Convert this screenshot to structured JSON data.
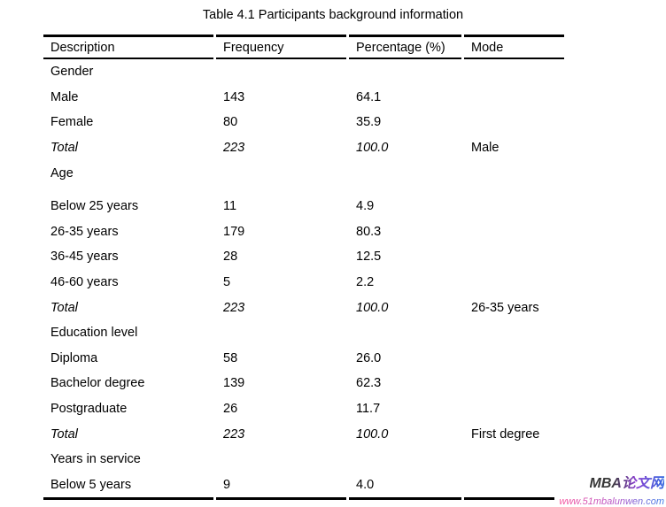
{
  "table": {
    "title": "Table 4.1 Participants background information",
    "columns": [
      "Description",
      "Frequency",
      "Percentage (%)",
      "Mode"
    ],
    "rows": [
      {
        "cells": [
          "Gender",
          "",
          "",
          ""
        ],
        "style": "section"
      },
      {
        "cells": [
          "Male",
          "143",
          "64.1",
          ""
        ],
        "style": "data"
      },
      {
        "cells": [
          "Female",
          "80",
          "35.9",
          ""
        ],
        "style": "data"
      },
      {
        "cells": [
          "Total",
          "223",
          "100.0",
          "Male"
        ],
        "style": "total"
      },
      {
        "cells": [
          "Age",
          "",
          "",
          ""
        ],
        "style": "section"
      },
      {
        "cells": [
          "Below 25 years",
          "11",
          "4.9",
          ""
        ],
        "style": "data",
        "extra_gap": true
      },
      {
        "cells": [
          "26-35 years",
          "179",
          "80.3",
          ""
        ],
        "style": "data"
      },
      {
        "cells": [
          "36-45 years",
          "28",
          "12.5",
          ""
        ],
        "style": "data"
      },
      {
        "cells": [
          "46-60 years",
          "5",
          "2.2",
          ""
        ],
        "style": "data"
      },
      {
        "cells": [
          "Total",
          "223",
          "100.0",
          "26-35 years"
        ],
        "style": "total"
      },
      {
        "cells": [
          "Education level",
          "",
          "",
          ""
        ],
        "style": "section"
      },
      {
        "cells": [
          "Diploma",
          "58",
          "26.0",
          ""
        ],
        "style": "data"
      },
      {
        "cells": [
          "Bachelor degree",
          "139",
          "62.3",
          ""
        ],
        "style": "data"
      },
      {
        "cells": [
          "Postgraduate",
          "26",
          "11.7",
          ""
        ],
        "style": "data"
      },
      {
        "cells": [
          "Total",
          "223",
          "100.0",
          "First degree"
        ],
        "style": "total"
      },
      {
        "cells": [
          "Years in service",
          "",
          "",
          ""
        ],
        "style": "section"
      },
      {
        "cells": [
          "Below 5 years",
          "9",
          "4.0",
          ""
        ],
        "style": "data"
      }
    ]
  },
  "watermark": {
    "brand": "MBA论文网",
    "url": "www.51mbalunwen.com",
    "brand_gradient": [
      "#333333",
      "#8a3fd0",
      "#2f66e0"
    ],
    "url_gradient": [
      "#f9559d",
      "#b253c8",
      "#3b7ce8"
    ]
  }
}
